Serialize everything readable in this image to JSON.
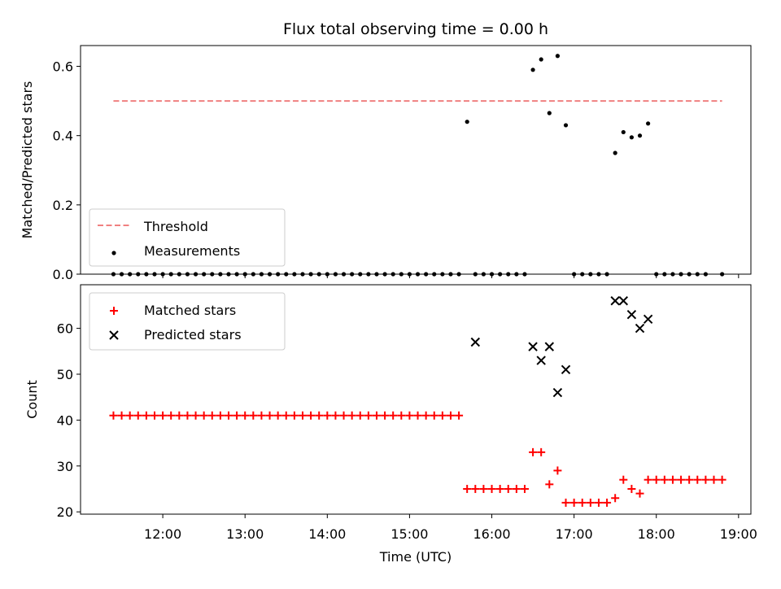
{
  "figure": {
    "title": "Flux total observing time = 0.00 h",
    "x_label": "Time (UTC)"
  },
  "chart_data": [
    {
      "type": "scatter",
      "panel": "top",
      "ylabel": "Matched/Predicted stars",
      "ylim": [
        0,
        0.66
      ],
      "xlim": [
        "11:00",
        "19:09"
      ],
      "yticks": [
        "0.0",
        "0.2",
        "0.4",
        "0.6"
      ],
      "xticks": [
        "12:00",
        "13:00",
        "14:00",
        "15:00",
        "16:00",
        "17:00",
        "18:00",
        "19:00"
      ],
      "legend_position": "lower-left",
      "threshold": {
        "name": "Threshold",
        "color": "#f08080",
        "style": "dashed",
        "value": 0.5,
        "x_start": "11:24",
        "x_end": "18:48"
      },
      "series": [
        {
          "name": "Measurements",
          "color": "#000000",
          "marker": "dot",
          "x": [
            "11:24",
            "11:30",
            "11:36",
            "11:42",
            "11:48",
            "11:54",
            "12:00",
            "12:06",
            "12:12",
            "12:18",
            "12:24",
            "12:30",
            "12:36",
            "12:42",
            "12:48",
            "12:54",
            "13:00",
            "13:06",
            "13:12",
            "13:18",
            "13:24",
            "13:30",
            "13:36",
            "13:42",
            "13:48",
            "13:54",
            "14:00",
            "14:06",
            "14:12",
            "14:18",
            "14:24",
            "14:30",
            "14:36",
            "14:42",
            "14:48",
            "14:54",
            "15:00",
            "15:06",
            "15:12",
            "15:18",
            "15:24",
            "15:30",
            "15:36",
            "15:42",
            "15:48",
            "15:54",
            "16:00",
            "16:06",
            "16:12",
            "16:18",
            "16:24",
            "16:30",
            "16:36",
            "16:42",
            "16:48",
            "16:54",
            "17:00",
            "17:06",
            "17:12",
            "17:18",
            "17:24",
            "17:30",
            "17:36",
            "17:42",
            "17:48",
            "17:54",
            "18:00",
            "18:06",
            "18:12",
            "18:18",
            "18:24",
            "18:30",
            "18:36",
            "18:48"
          ],
          "y": [
            0,
            0,
            0,
            0,
            0,
            0,
            0,
            0,
            0,
            0,
            0,
            0,
            0,
            0,
            0,
            0,
            0,
            0,
            0,
            0,
            0,
            0,
            0,
            0,
            0,
            0,
            0,
            0,
            0,
            0,
            0,
            0,
            0,
            0,
            0,
            0,
            0,
            0,
            0,
            0,
            0,
            0,
            0,
            0.44,
            0,
            0,
            0,
            0,
            0,
            0,
            0,
            0.59,
            0.62,
            0.465,
            0.63,
            0.43,
            0,
            0,
            0,
            0,
            0,
            0.35,
            0.41,
            0.395,
            0.4,
            0.435,
            0,
            0,
            0,
            0,
            0,
            0,
            0,
            0
          ]
        }
      ]
    },
    {
      "type": "scatter",
      "panel": "bottom",
      "ylabel": "Count",
      "ylim": [
        19.5,
        69.5
      ],
      "xlim": [
        "11:00",
        "19:09"
      ],
      "yticks": [
        "20",
        "30",
        "40",
        "50",
        "60"
      ],
      "xticks": [
        "12:00",
        "13:00",
        "14:00",
        "15:00",
        "16:00",
        "17:00",
        "18:00",
        "19:00"
      ],
      "legend_position": "upper-left",
      "series": [
        {
          "name": "Matched stars",
          "color": "#ff0000",
          "marker": "plus",
          "x": [
            "11:24",
            "11:30",
            "11:36",
            "11:42",
            "11:48",
            "11:54",
            "12:00",
            "12:06",
            "12:12",
            "12:18",
            "12:24",
            "12:30",
            "12:36",
            "12:42",
            "12:48",
            "12:54",
            "13:00",
            "13:06",
            "13:12",
            "13:18",
            "13:24",
            "13:30",
            "13:36",
            "13:42",
            "13:48",
            "13:54",
            "14:00",
            "14:06",
            "14:12",
            "14:18",
            "14:24",
            "14:30",
            "14:36",
            "14:42",
            "14:48",
            "14:54",
            "15:00",
            "15:06",
            "15:12",
            "15:18",
            "15:24",
            "15:30",
            "15:36",
            "15:42",
            "15:48",
            "15:54",
            "16:00",
            "16:06",
            "16:12",
            "16:18",
            "16:24",
            "16:30",
            "16:36",
            "16:42",
            "16:48",
            "16:54",
            "17:00",
            "17:06",
            "17:12",
            "17:18",
            "17:24",
            "17:30",
            "17:36",
            "17:42",
            "17:48",
            "17:54",
            "18:00",
            "18:06",
            "18:12",
            "18:18",
            "18:24",
            "18:30",
            "18:36",
            "18:42",
            "18:48"
          ],
          "y": [
            41,
            41,
            41,
            41,
            41,
            41,
            41,
            41,
            41,
            41,
            41,
            41,
            41,
            41,
            41,
            41,
            41,
            41,
            41,
            41,
            41,
            41,
            41,
            41,
            41,
            41,
            41,
            41,
            41,
            41,
            41,
            41,
            41,
            41,
            41,
            41,
            41,
            41,
            41,
            41,
            41,
            41,
            41,
            25,
            25,
            25,
            25,
            25,
            25,
            25,
            25,
            33,
            33,
            26,
            29,
            22,
            22,
            22,
            22,
            22,
            22,
            23,
            27,
            25,
            24,
            27,
            27,
            27,
            27,
            27,
            27,
            27,
            27,
            27,
            27
          ]
        },
        {
          "name": "Predicted stars",
          "color": "#000000",
          "marker": "x",
          "x": [
            "15:48",
            "16:30",
            "16:36",
            "16:42",
            "16:48",
            "16:54",
            "17:30",
            "17:36",
            "17:42",
            "17:48",
            "17:54"
          ],
          "y": [
            57,
            56,
            53,
            56,
            46,
            51,
            66,
            66,
            63,
            60,
            62
          ]
        }
      ]
    }
  ]
}
